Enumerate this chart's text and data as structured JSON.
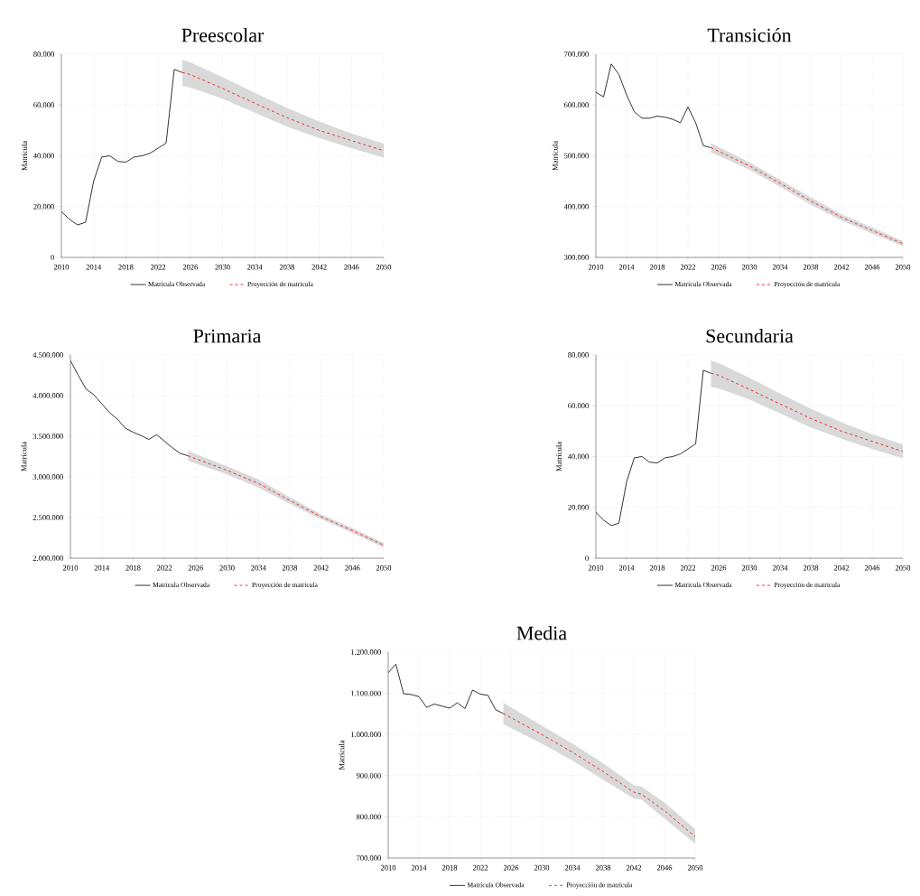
{
  "chart_data": [
    {
      "type": "line",
      "title": "Preescolar",
      "ylabel": "Matrícula",
      "xlim": [
        2010,
        2050
      ],
      "xticks": [
        2010,
        2014,
        2018,
        2022,
        2026,
        2030,
        2034,
        2038,
        2042,
        2046,
        2050
      ],
      "ylim": [
        0,
        80000
      ],
      "yticks": [
        0,
        {
          "value": 20000,
          "label": "20.000"
        },
        {
          "value": 40000,
          "label": "40.000"
        },
        {
          "value": 60000,
          "label": "60.000"
        },
        {
          "value": 80000,
          "label": "80.000"
        }
      ],
      "grid": true,
      "legend": "bottom",
      "series": [
        {
          "name": "Matrícula Observada",
          "color": "#000000",
          "line_style": "solid",
          "x": [
            2010,
            2011,
            2012,
            2013,
            2014,
            2015,
            2016,
            2017,
            2018,
            2019,
            2020,
            2021,
            2022,
            2023,
            2024,
            2025
          ],
          "values": [
            18000,
            15000,
            12800,
            13800,
            30000,
            39500,
            40000,
            37800,
            37500,
            39500,
            40000,
            41000,
            43000,
            45000,
            74000,
            72800
          ]
        },
        {
          "name": "Proyección de matrícula",
          "color": "#ff0000",
          "line_style": "dashed",
          "x": [
            2025,
            2026,
            2030,
            2034,
            2038,
            2042,
            2046,
            2050
          ],
          "values": [
            72800,
            72000,
            66500,
            60700,
            55000,
            50000,
            46000,
            42000
          ],
          "lower": [
            67500,
            66800,
            62500,
            57000,
            51500,
            47000,
            43000,
            39300
          ],
          "upper": [
            77800,
            76800,
            71000,
            64800,
            58800,
            53500,
            48800,
            44800
          ]
        }
      ]
    },
    {
      "type": "line",
      "title": "Transición",
      "ylabel": "Matrícula",
      "xlim": [
        2010,
        2050
      ],
      "xticks": [
        2010,
        2014,
        2018,
        2022,
        2026,
        2030,
        2034,
        2038,
        2042,
        2046,
        2050
      ],
      "ylim": [
        300000,
        700000
      ],
      "yticks": [
        {
          "value": 300000,
          "label": "300.000"
        },
        {
          "value": 400000,
          "label": "400.000"
        },
        {
          "value": 500000,
          "label": "500.000"
        },
        {
          "value": 600000,
          "label": "600.000"
        },
        {
          "value": 700000,
          "label": "700.000"
        }
      ],
      "grid": true,
      "legend": "bottom",
      "series": [
        {
          "name": "Matrícula Observada",
          "color": "#000000",
          "line_style": "solid",
          "x": [
            2010,
            2011,
            2012,
            2013,
            2014,
            2015,
            2016,
            2017,
            2018,
            2019,
            2020,
            2021,
            2022,
            2023,
            2024,
            2025
          ],
          "values": [
            625000,
            616000,
            681000,
            660000,
            620000,
            587000,
            574000,
            574000,
            578000,
            576000,
            572000,
            565000,
            596000,
            565000,
            520000,
            516000
          ]
        },
        {
          "name": "Proyección de matrícula",
          "color": "#ff0000",
          "line_style": "dashed",
          "x": [
            2025,
            2030,
            2034,
            2038,
            2042,
            2046,
            2050
          ],
          "values": [
            516000,
            480000,
            446000,
            411000,
            379000,
            353000,
            327000
          ],
          "lower": [
            507000,
            473000,
            439000,
            404000,
            373000,
            347000,
            322000
          ],
          "upper": [
            525000,
            487000,
            453000,
            418000,
            385000,
            359000,
            332000
          ]
        }
      ]
    },
    {
      "type": "line",
      "title": "Primaria",
      "ylabel": "Matrícula",
      "xlim": [
        2010,
        2050
      ],
      "xticks": [
        2010,
        2014,
        2018,
        2022,
        2026,
        2030,
        2034,
        2038,
        2042,
        2046,
        2050
      ],
      "ylim": [
        2000000,
        4500000
      ],
      "yticks": [
        {
          "value": 2000000,
          "label": "2.000.000"
        },
        {
          "value": 2500000,
          "label": "2.500.000"
        },
        {
          "value": 3000000,
          "label": "3.000.000"
        },
        {
          "value": 3500000,
          "label": "3.500.000"
        },
        {
          "value": 4000000,
          "label": "4.000.000"
        },
        {
          "value": 4500000,
          "label": "4.500.000"
        }
      ],
      "grid": true,
      "legend": "bottom",
      "series": [
        {
          "name": "Matrícula Observada",
          "color": "#000000",
          "line_style": "solid",
          "x": [
            2010,
            2011,
            2012,
            2013,
            2014,
            2015,
            2016,
            2017,
            2018,
            2019,
            2020,
            2021,
            2022,
            2023,
            2024,
            2025
          ],
          "values": [
            4430000,
            4250000,
            4080000,
            4010000,
            3900000,
            3790000,
            3710000,
            3600000,
            3550000,
            3510000,
            3460000,
            3520000,
            3440000,
            3360000,
            3290000,
            3260000
          ]
        },
        {
          "name": "Proyección de matrícula",
          "color": "#ff0000",
          "line_style": "dashed",
          "x": [
            2025,
            2030,
            2034,
            2038,
            2042,
            2046,
            2050
          ],
          "values": [
            3260000,
            3080000,
            2920000,
            2710000,
            2510000,
            2340000,
            2160000
          ],
          "lower": [
            3200000,
            3030000,
            2870000,
            2670000,
            2480000,
            2310000,
            2130000
          ],
          "upper": [
            3320000,
            3130000,
            2970000,
            2750000,
            2540000,
            2370000,
            2190000
          ]
        }
      ]
    },
    {
      "type": "line",
      "title": "Secundaria",
      "ylabel": "Matrícula",
      "xlim": [
        2010,
        2050
      ],
      "xticks": [
        2010,
        2014,
        2018,
        2022,
        2026,
        2030,
        2034,
        2038,
        2042,
        2046,
        2050
      ],
      "ylim": [
        0,
        80000
      ],
      "yticks": [
        0,
        {
          "value": 20000,
          "label": "20.000"
        },
        {
          "value": 40000,
          "label": "40.000"
        },
        {
          "value": 60000,
          "label": "60.000"
        },
        {
          "value": 80000,
          "label": "80.000"
        }
      ],
      "grid": true,
      "legend": "bottom",
      "series": [
        {
          "name": "Matrícula Observada",
          "color": "#000000",
          "line_style": "solid",
          "x": [
            2010,
            2011,
            2012,
            2013,
            2014,
            2015,
            2016,
            2017,
            2018,
            2019,
            2020,
            2021,
            2022,
            2023,
            2024,
            2025
          ],
          "values": [
            18000,
            15000,
            12800,
            13800,
            30000,
            39500,
            40000,
            37800,
            37500,
            39500,
            40000,
            41000,
            43000,
            45000,
            74000,
            72800
          ]
        },
        {
          "name": "Proyección de matrícula",
          "color": "#ff0000",
          "line_style": "dashed",
          "x": [
            2025,
            2026,
            2030,
            2034,
            2038,
            2042,
            2046,
            2050
          ],
          "values": [
            72800,
            72000,
            66500,
            60700,
            55000,
            50000,
            46000,
            42000
          ],
          "lower": [
            67500,
            66800,
            62500,
            57000,
            51500,
            47000,
            43000,
            39300
          ],
          "upper": [
            77800,
            76800,
            71000,
            64800,
            58800,
            53500,
            48800,
            44800
          ]
        }
      ]
    },
    {
      "type": "line",
      "title": "Media",
      "ylabel": "Matrícula",
      "xlim": [
        2010,
        2050
      ],
      "xticks": [
        2010,
        2014,
        2018,
        2022,
        2026,
        2030,
        2034,
        2038,
        2042,
        2046,
        2050
      ],
      "ylim": [
        700000,
        1200000
      ],
      "yticks": [
        {
          "value": 700000,
          "label": "700.000"
        },
        {
          "value": 800000,
          "label": "800.000"
        },
        {
          "value": 900000,
          "label": "900.000"
        },
        {
          "value": 1000000,
          "label": "1.000.000"
        },
        {
          "value": 1100000,
          "label": "1.100.000"
        },
        {
          "value": 1200000,
          "label": "1.200.000"
        }
      ],
      "grid": true,
      "legend": "bottom",
      "series": [
        {
          "name": "Matrícula Observada",
          "color": "#000000",
          "line_style": "solid",
          "x": [
            2010,
            2011,
            2012,
            2013,
            2014,
            2015,
            2016,
            2017,
            2018,
            2019,
            2020,
            2021,
            2022,
            2023,
            2024,
            2025
          ],
          "values": [
            1150000,
            1171000,
            1099000,
            1097000,
            1092000,
            1066000,
            1074000,
            1069000,
            1064000,
            1077000,
            1063000,
            1108000,
            1098000,
            1095000,
            1060000,
            1051000
          ]
        },
        {
          "name": "Proyección de matrícula",
          "color": "#ff0000",
          "line_style": "dashed",
          "x": [
            2025,
            2030,
            2034,
            2038,
            2042,
            2043,
            2046,
            2050
          ],
          "values": [
            1051000,
            1000000,
            957000,
            910000,
            860000,
            855000,
            815000,
            752000
          ],
          "lower": [
            1025000,
            978000,
            937000,
            890000,
            845000,
            842000,
            796000,
            735000
          ],
          "upper": [
            1077000,
            1022000,
            978000,
            930000,
            877000,
            873000,
            835000,
            770000
          ]
        }
      ]
    }
  ]
}
